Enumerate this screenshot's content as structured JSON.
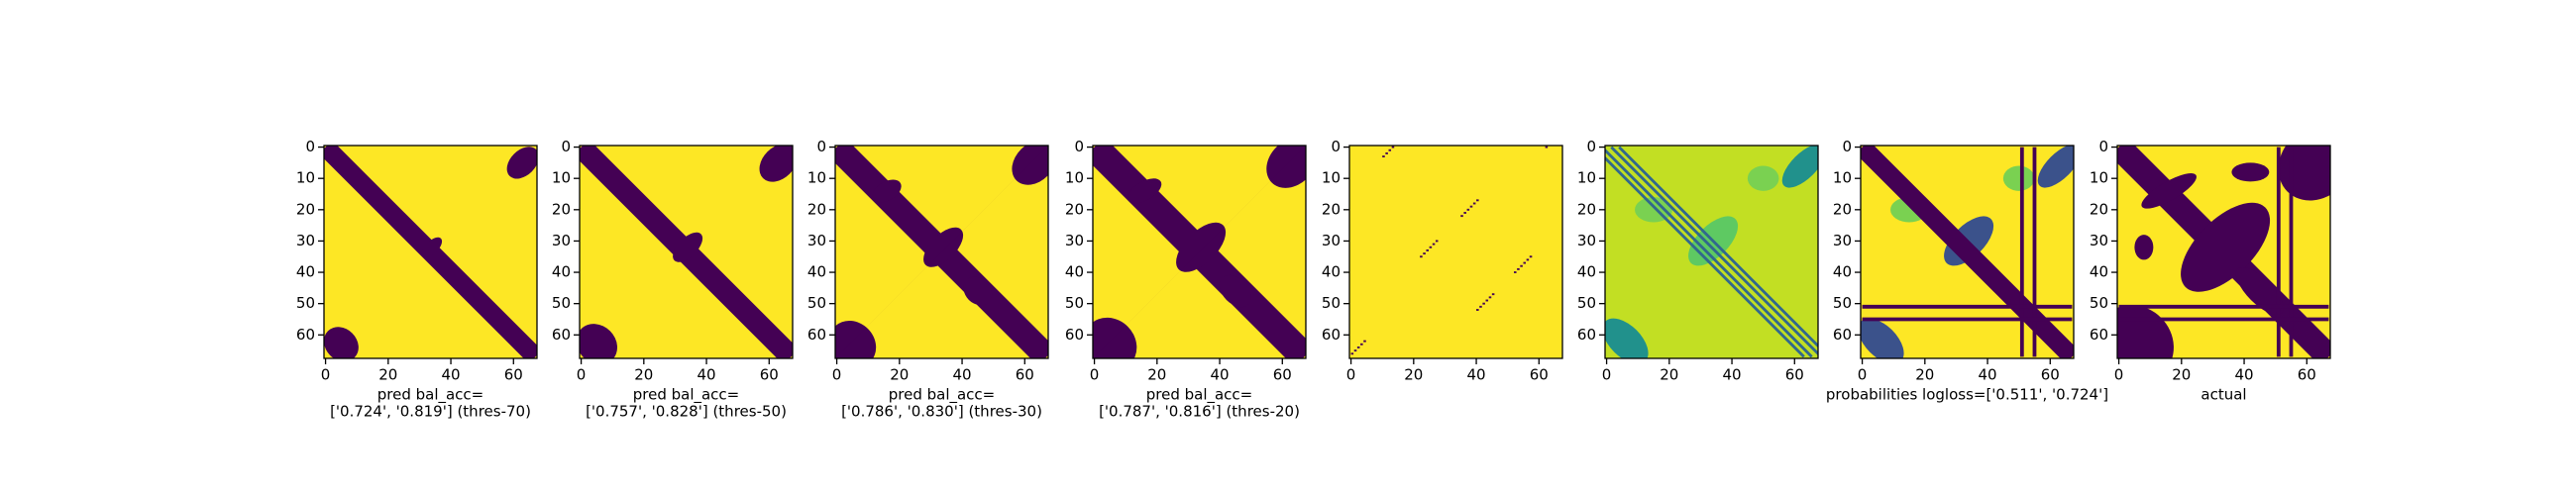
{
  "chart_data": [
    {
      "type": "heatmap",
      "caption": [
        "pred bal_acc=",
        "['0.724', '0.819'] (thres-70)"
      ],
      "xlim": [
        -0.5,
        67.5
      ],
      "ylim": [
        67.5,
        -0.5
      ],
      "xticks": [
        0,
        20,
        40,
        60
      ],
      "yticks": [
        0,
        10,
        20,
        30,
        40,
        50,
        60
      ]
    },
    {
      "type": "heatmap",
      "caption": [
        "pred bal_acc=",
        "['0.757', '0.828'] (thres-50)"
      ],
      "xlim": [
        -0.5,
        67.5
      ],
      "ylim": [
        67.5,
        -0.5
      ],
      "xticks": [
        0,
        20,
        40,
        60
      ],
      "yticks": [
        0,
        10,
        20,
        30,
        40,
        50,
        60
      ]
    },
    {
      "type": "heatmap",
      "caption": [
        "pred bal_acc=",
        "['0.786', '0.830'] (thres-30)"
      ],
      "xlim": [
        -0.5,
        67.5
      ],
      "ylim": [
        67.5,
        -0.5
      ],
      "xticks": [
        0,
        20,
        40,
        60
      ],
      "yticks": [
        0,
        10,
        20,
        30,
        40,
        50,
        60
      ]
    },
    {
      "type": "heatmap",
      "caption": [
        "pred bal_acc=",
        "['0.787', '0.816'] (thres-20)"
      ],
      "xlim": [
        -0.5,
        67.5
      ],
      "ylim": [
        67.5,
        -0.5
      ],
      "xticks": [
        0,
        20,
        40,
        60
      ],
      "yticks": [
        0,
        10,
        20,
        30,
        40,
        50,
        60
      ]
    },
    {
      "type": "heatmap",
      "caption": [],
      "xlim": [
        -0.5,
        67.5
      ],
      "ylim": [
        67.5,
        -0.5
      ],
      "xticks": [
        0,
        20,
        40,
        60
      ],
      "yticks": [
        0,
        10,
        20,
        30,
        40,
        50,
        60
      ]
    },
    {
      "type": "heatmap",
      "caption": [],
      "xlim": [
        -0.5,
        67.5
      ],
      "ylim": [
        67.5,
        -0.5
      ],
      "xticks": [
        0,
        20,
        40,
        60
      ],
      "yticks": [
        0,
        10,
        20,
        30,
        40,
        50,
        60
      ]
    },
    {
      "type": "heatmap",
      "caption": [
        "probabilities logloss=['0.511', '0.724']"
      ],
      "xlim": [
        -0.5,
        67.5
      ],
      "ylim": [
        67.5,
        -0.5
      ],
      "xticks": [
        0,
        20,
        40,
        60
      ],
      "yticks": [
        0,
        10,
        20,
        30,
        40,
        50,
        60
      ]
    },
    {
      "type": "heatmap",
      "caption": [
        "actual"
      ],
      "xlim": [
        -0.5,
        67.5
      ],
      "ylim": [
        67.5,
        -0.5
      ],
      "xticks": [
        0,
        20,
        40,
        60
      ],
      "yticks": [
        0,
        10,
        20,
        30,
        40,
        50,
        60
      ]
    }
  ]
}
